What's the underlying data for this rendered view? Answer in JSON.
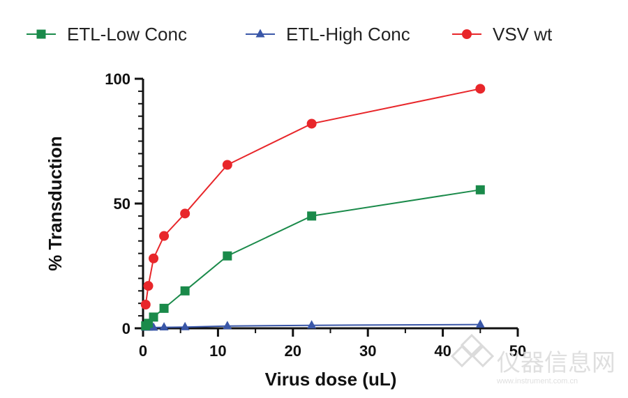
{
  "chart_data": {
    "type": "line",
    "xlabel": "Virus dose (uL)",
    "ylabel": "% Transduction",
    "xlim": [
      0,
      50
    ],
    "ylim": [
      0,
      100
    ],
    "x_major_ticks": [
      0,
      10,
      20,
      30,
      40,
      50
    ],
    "x_tick_labels": [
      "0",
      "10",
      "20",
      "30",
      "40",
      "50"
    ],
    "y_major_ticks": [
      0,
      50,
      100
    ],
    "y_tick_labels": [
      "0",
      "50",
      "100"
    ],
    "grid": false,
    "legend_position": "top",
    "series": [
      {
        "name": "ETL-Low Conc",
        "color": "#1a8a4a",
        "marker": "square",
        "x": [
          0.35,
          0.7,
          1.4,
          2.8,
          5.6,
          11.25,
          22.5,
          45
        ],
        "y": [
          1,
          2,
          4.5,
          8,
          15,
          29,
          45,
          55.5
        ]
      },
      {
        "name": "ETL-High Conc",
        "color": "#3a57a8",
        "marker": "triangle",
        "x": [
          0.35,
          0.7,
          1.4,
          2.8,
          5.6,
          11.25,
          22.5,
          45
        ],
        "y": [
          0.3,
          0.3,
          0.3,
          0.4,
          0.5,
          0.9,
          1.2,
          1.5
        ]
      },
      {
        "name": "VSV wt",
        "color": "#e8262a",
        "marker": "circle",
        "x": [
          0.35,
          0.7,
          1.4,
          2.8,
          5.6,
          11.25,
          22.5,
          45
        ],
        "y": [
          9.5,
          17,
          28,
          37,
          46,
          65.5,
          82,
          96
        ]
      }
    ]
  },
  "watermark": {
    "text": "仪器信息网",
    "url": "www.instrument.com.cn",
    "color": "#dcdcdc",
    "icon": "watermark-logo-icon"
  }
}
